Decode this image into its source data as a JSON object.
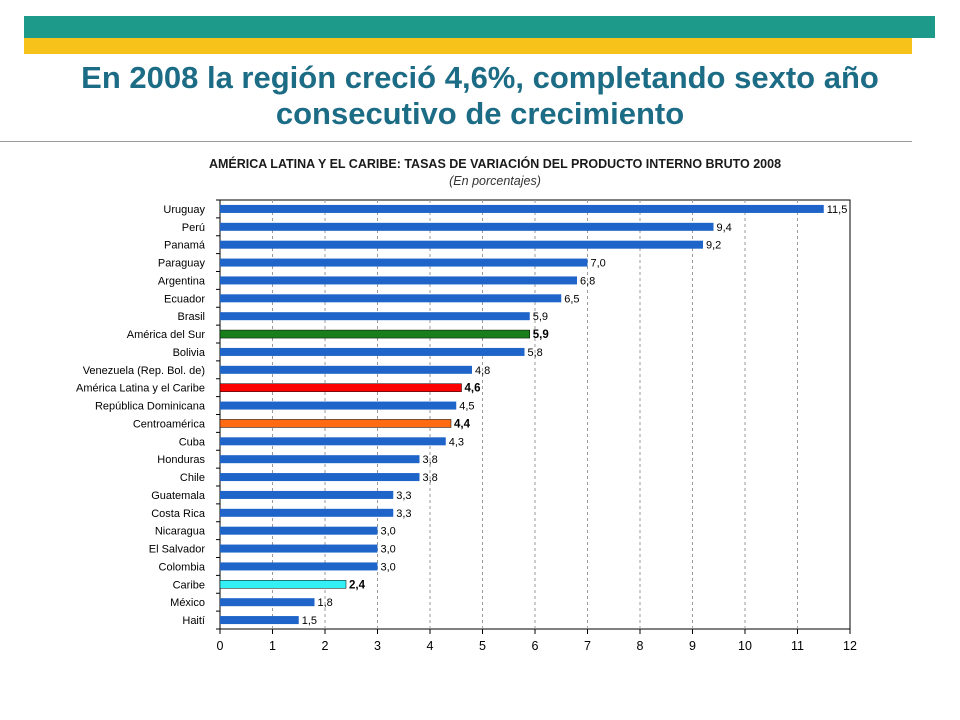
{
  "header": {
    "title_line1": "En 2008 la región creció 4,6%, completando sexto año",
    "title_line2": "consecutivo de crecimiento"
  },
  "colors": {
    "teal_band": "#1e9a8a",
    "yellow_band": "#f7c31a",
    "title": "#1c6c86",
    "bar_default": "#1f64c8",
    "bar_america_del_sur": "#1a7f1a",
    "bar_america_latina_caribe": "#ff0000",
    "bar_centroamerica": "#ff6a13",
    "bar_caribe": "#33f0f5"
  },
  "chart_data": {
    "type": "bar",
    "orientation": "horizontal",
    "title": "AMÉRICA LATINA Y EL CARIBE: TASAS DE VARIACIÓN DEL PRODUCTO INTERNO BRUTO 2008",
    "subtitle": "(En porcentajes)",
    "xlabel": "",
    "ylabel": "",
    "xlim": [
      0,
      12
    ],
    "xticks": [
      0,
      1,
      2,
      3,
      4,
      5,
      6,
      7,
      8,
      9,
      10,
      11,
      12
    ],
    "grid": "vertical dashed",
    "categories": [
      "Uruguay",
      "Perú",
      "Panamá",
      "Paraguay",
      "Argentina",
      "Ecuador",
      "Brasil",
      "América del Sur",
      "Bolivia",
      "Venezuela (Rep. Bol. de)",
      "América Latina y el Caribe",
      "República Dominicana",
      "Centroamérica",
      "Cuba",
      "Honduras",
      "Chile",
      "Guatemala",
      "Costa Rica",
      "Nicaragua",
      "El Salvador",
      "Colombia",
      "Caribe",
      "México",
      "Haití"
    ],
    "values": [
      11.5,
      9.4,
      9.2,
      7.0,
      6.8,
      6.5,
      5.9,
      5.9,
      5.8,
      4.8,
      4.6,
      4.5,
      4.4,
      4.3,
      3.8,
      3.8,
      3.3,
      3.3,
      3.0,
      3.0,
      3.0,
      2.4,
      1.8,
      1.5
    ],
    "value_labels": [
      "11,5",
      "9,4",
      "9,2",
      "7,0",
      "6,8",
      "6,5",
      "5,9",
      "5,9",
      "5,8",
      "4,8",
      "4,6",
      "4,5",
      "4,4",
      "4,3",
      "3,8",
      "3,8",
      "3,3",
      "3,3",
      "3,0",
      "3,0",
      "3,0",
      "2,4",
      "1,8",
      "1,5"
    ],
    "highlighted": {
      "América del Sur": "bar_america_del_sur",
      "América Latina y el Caribe": "bar_america_latina_caribe",
      "Centroamérica": "bar_centroamerica",
      "Caribe": "bar_caribe"
    }
  }
}
